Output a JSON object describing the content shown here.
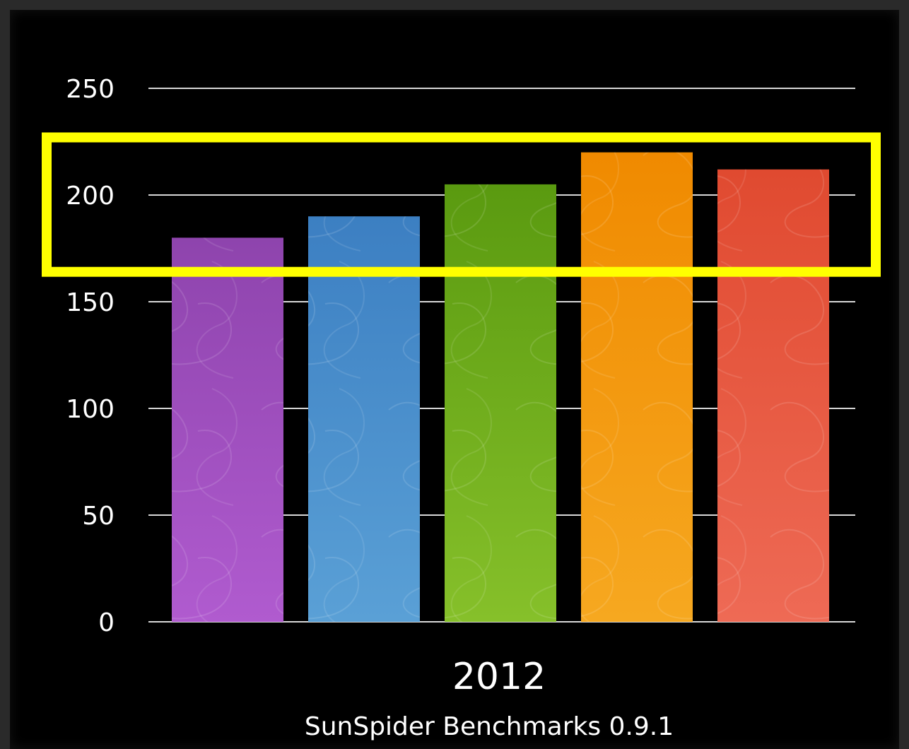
{
  "chart_data": {
    "type": "bar",
    "categories": [
      "2012"
    ],
    "series": [
      {
        "values": [
          180
        ],
        "color": "#8e44ad",
        "color_light": "#b05bcf"
      },
      {
        "values": [
          190
        ],
        "color": "#3c7fc2",
        "color_light": "#5aa0d6"
      },
      {
        "values": [
          205
        ],
        "color": "#5a9a10",
        "color_light": "#86c02a"
      },
      {
        "values": [
          220
        ],
        "color": "#f08a00",
        "color_light": "#f6a820"
      },
      {
        "values": [
          212
        ],
        "color": "#e04a30",
        "color_light": "#ee6a55"
      }
    ],
    "yticks": [
      0,
      50,
      100,
      150,
      200,
      250
    ],
    "ylim": [
      0,
      250
    ],
    "caption": "SunSpider Benchmarks 0.9.1",
    "grid": true,
    "highlight": {
      "y_range": [
        164,
        227
      ],
      "color": "#ffff00"
    }
  }
}
